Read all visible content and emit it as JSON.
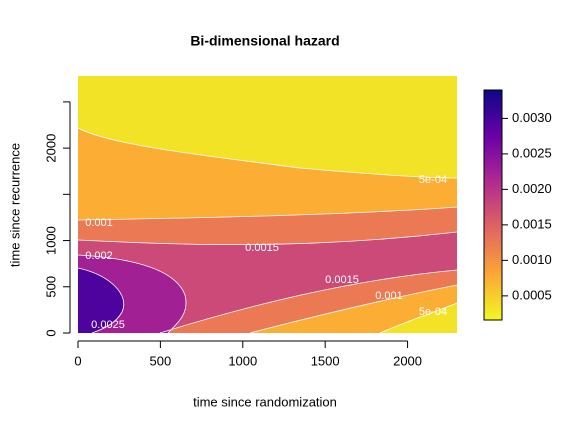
{
  "chart_data": {
    "type": "contour",
    "title": "Bi-dimensional hazard",
    "x_label": "time since randomization",
    "y_label": "time since recurrence",
    "xlim": [
      0,
      2300
    ],
    "xticks": [
      0,
      500,
      1000,
      1500,
      2000
    ],
    "ylim": [
      0,
      2780
    ],
    "yticks": [
      0,
      500,
      1000,
      2000
    ],
    "yticks_unlabeled": [
      1500,
      2500
    ],
    "zlim": [
      0.00016,
      0.0034
    ],
    "zticks": [
      {
        "value": 0.0005,
        "label": "0.0005"
      },
      {
        "value": 0.001,
        "label": "0.0010"
      },
      {
        "value": 0.0015,
        "label": "0.0015"
      },
      {
        "value": 0.002,
        "label": "0.0020"
      },
      {
        "value": 0.0025,
        "label": "0.0025"
      },
      {
        "value": 0.003,
        "label": "0.0030"
      }
    ],
    "levels": [
      {
        "value": 0.0005,
        "label": "5e-04"
      },
      {
        "value": 0.001,
        "label": "0.001"
      },
      {
        "value": 0.0015,
        "label": "0.0015"
      },
      {
        "value": 0.002,
        "label": "0.002"
      },
      {
        "value": 0.0025,
        "label": "0.0025"
      }
    ],
    "colormap": [
      "#F0F921",
      "#FCA636",
      "#E16462",
      "#B12A90",
      "#6A00A8",
      "#0D0887"
    ],
    "line_color": "#ffffff"
  }
}
